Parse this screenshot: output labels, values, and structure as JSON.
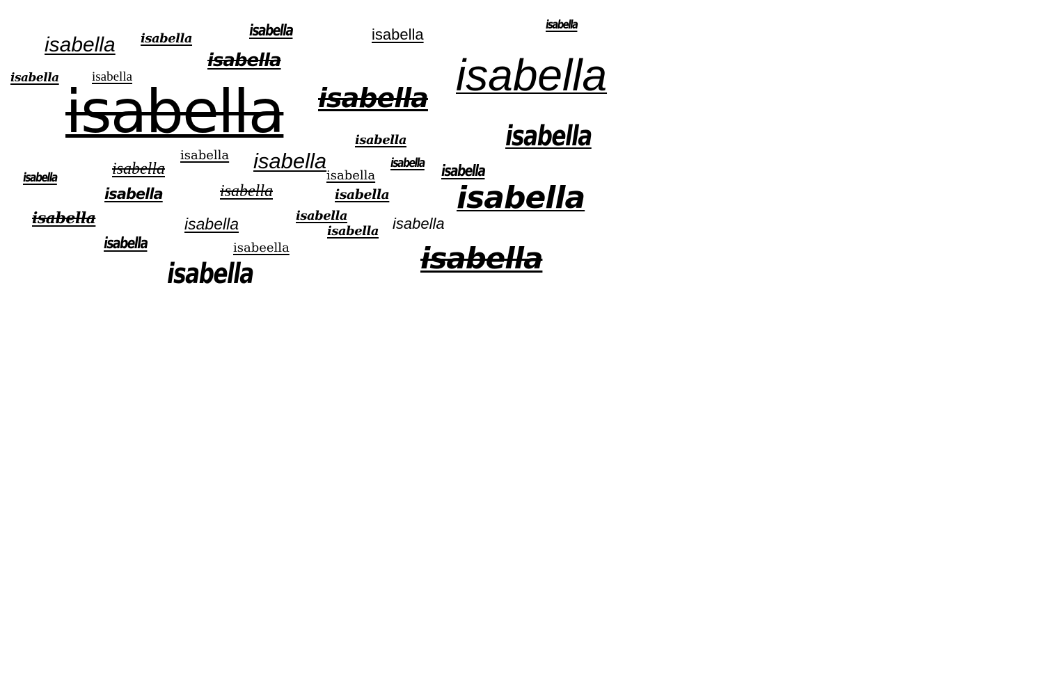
{
  "words": [
    "isabella",
    "isabella",
    "isabella",
    "isabella",
    "isabella",
    "isabella",
    "isabella",
    "isabella",
    "isabella",
    "isabella",
    "isabella",
    "isabella",
    "isabella",
    "isabella",
    "isabella",
    "isabella",
    "isabella",
    "isabella",
    "isabella",
    "isabella",
    "isabella",
    "isabella",
    "isabella",
    "isabella",
    "isabella",
    "isabella",
    "isabella",
    "isabella",
    "isabella",
    "isabeella",
    "isabella",
    "isabella"
  ],
  "colors": {
    "text": "#000000",
    "background": "#ffffff"
  }
}
